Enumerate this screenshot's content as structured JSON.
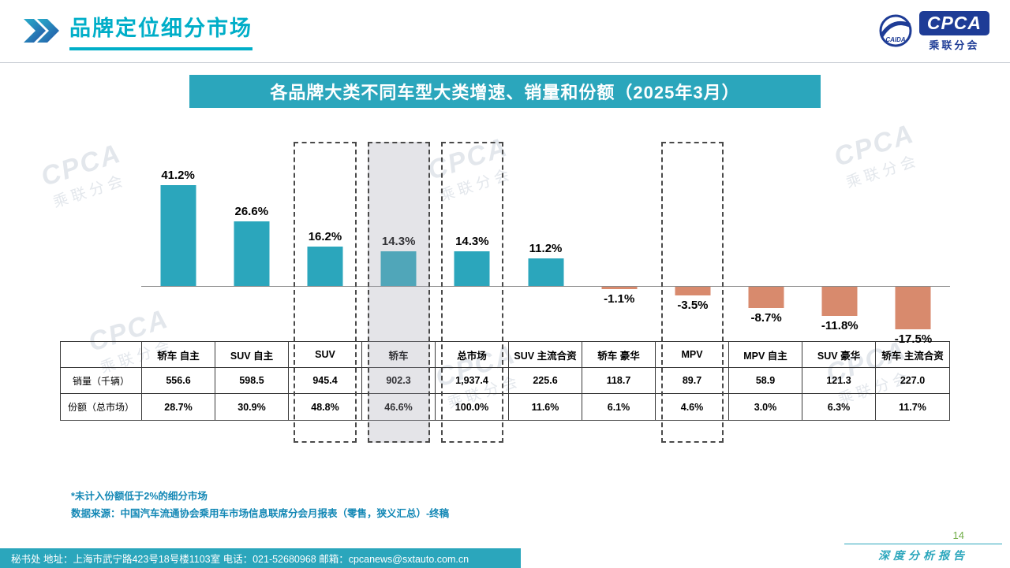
{
  "header": {
    "title": "品牌定位细分市场",
    "logo": {
      "brand": "CPCA",
      "sub": "乘联分会",
      "mark_text": "CAIDA"
    }
  },
  "chart_data": {
    "type": "bar",
    "title": "各品牌大类不同车型大类增速、销量和份额（2025年3月）",
    "categories": [
      "轿车 自主",
      "SUV 自主",
      "SUV",
      "轿车",
      "总市场",
      "SUV 主流合资",
      "轿车 豪华",
      "MPV",
      "MPV 自主",
      "SUV 豪华",
      "轿车 主流合资"
    ],
    "values": [
      41.2,
      26.6,
      16.2,
      14.3,
      14.3,
      11.2,
      -1.1,
      -3.5,
      -8.7,
      -11.8,
      -17.5
    ],
    "value_labels": [
      "41.2%",
      "26.6%",
      "16.2%",
      "14.3%",
      "14.3%",
      "11.2%",
      "-1.1%",
      "-3.5%",
      "-8.7%",
      "-11.8%",
      "-17.5%"
    ],
    "ylim": [
      -20,
      45
    ],
    "grid": false,
    "legend": "none",
    "positive_color": "#2BA6BC",
    "negative_color": "#D88A6D",
    "highlighted_categories": [
      "SUV",
      "轿车",
      "总市场",
      "MPV"
    ],
    "filled_category": "轿车"
  },
  "table": {
    "corner": "",
    "row_labels": [
      "销量（千辆）",
      "份额（总市场）"
    ],
    "sales": [
      "556.6",
      "598.5",
      "945.4",
      "902.3",
      "1,937.4",
      "225.6",
      "118.7",
      "89.7",
      "58.9",
      "121.3",
      "227.0"
    ],
    "share": [
      "28.7%",
      "30.9%",
      "48.8%",
      "46.6%",
      "100.0%",
      "11.6%",
      "6.1%",
      "4.6%",
      "3.0%",
      "6.3%",
      "11.7%"
    ]
  },
  "notes": [
    "*未计入份额低于2%的细分市场",
    "数据来源：中国汽车流通协会乘用车市场信息联席分会月报表（零售，狭义汇总）-终稿"
  ],
  "footer": {
    "contact": "秘书处  地址：上海市武宁路423号18号楼1103室  电话：021-52680968  邮箱：cpcanews@sxtauto.com.cn",
    "page_number": "14",
    "report_label": "深度分析报告"
  },
  "watermark": {
    "brand": "CPCA",
    "sub": "乘联分会"
  }
}
